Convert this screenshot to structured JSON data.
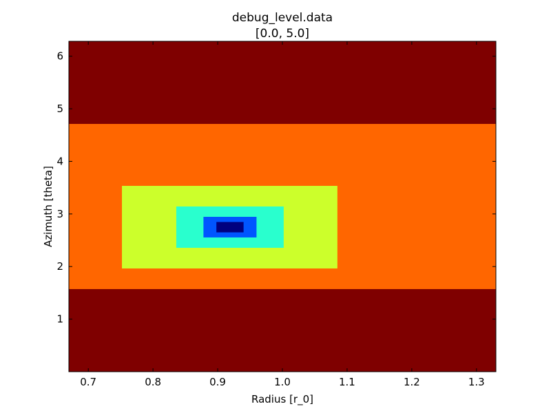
{
  "chart_data": {
    "type": "heatmap",
    "title": "debug_level.data",
    "subtitle": "[0.0, 5.0]",
    "xlabel": "Radius [r_0]",
    "ylabel": "Azimuth [theta]",
    "xlim": [
      0.67,
      1.33
    ],
    "ylim": [
      0.0,
      6.283
    ],
    "xticks": [
      0.7,
      0.8,
      0.9,
      1.0,
      1.1,
      1.2,
      1.3
    ],
    "xtick_labels": [
      "0.7",
      "0.8",
      "0.9",
      "1.0",
      "1.1",
      "1.2",
      "1.3"
    ],
    "yticks": [
      1,
      2,
      3,
      4,
      5,
      6
    ],
    "ytick_labels": [
      "1",
      "2",
      "3",
      "4",
      "5",
      "6"
    ],
    "color_range": [
      0.0,
      5.0
    ],
    "colormap": "jet",
    "grid": false,
    "regions": [
      {
        "level": 5,
        "color": "#7f0000",
        "x": [
          0.67,
          1.33
        ],
        "y": [
          0.0,
          6.283
        ]
      },
      {
        "level": 4,
        "color": "#ff6600",
        "x": [
          0.67,
          1.33
        ],
        "y": [
          1.571,
          4.712
        ]
      },
      {
        "level": 3,
        "color": "#ccff2b",
        "x": [
          0.752,
          1.085
        ],
        "y": [
          1.963,
          3.534
        ]
      },
      {
        "level": 2,
        "color": "#29ffce",
        "x": [
          0.836,
          1.002
        ],
        "y": [
          2.356,
          3.142
        ]
      },
      {
        "level": 1,
        "color": "#0055ff",
        "x": [
          0.878,
          0.96
        ],
        "y": [
          2.553,
          2.945
        ]
      },
      {
        "level": 0,
        "color": "#00007f",
        "x": [
          0.898,
          0.94
        ],
        "y": [
          2.65,
          2.847
        ]
      }
    ]
  }
}
